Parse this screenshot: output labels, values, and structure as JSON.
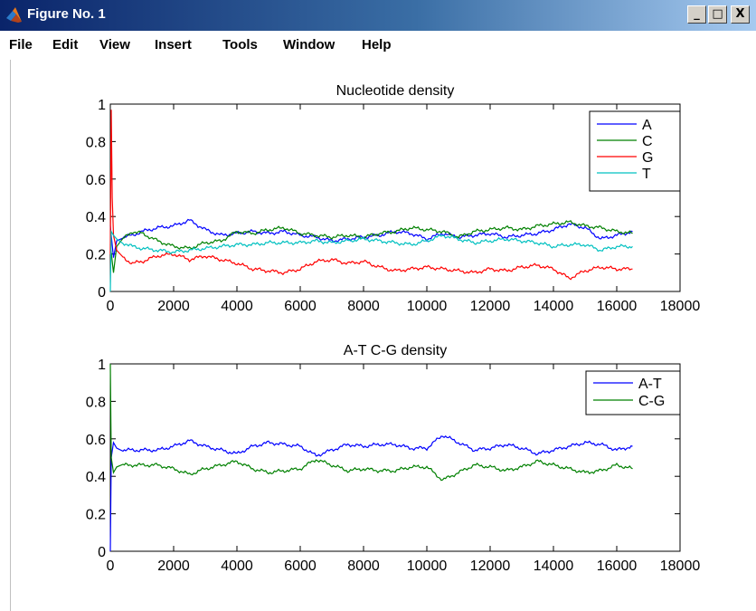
{
  "window": {
    "title": "Figure No. 1",
    "menu": [
      "File",
      "Edit",
      "View",
      "Insert",
      "Tools",
      "Window",
      "Help"
    ],
    "buttons": {
      "minimize": "_",
      "maximize": "□",
      "close": "X"
    }
  },
  "chart_data": [
    {
      "type": "line",
      "title": "Nucleotide density",
      "xlim": [
        0,
        18000
      ],
      "ylim": [
        0,
        1
      ],
      "xticks": [
        0,
        2000,
        4000,
        6000,
        8000,
        10000,
        12000,
        14000,
        16000,
        18000
      ],
      "yticks": [
        0,
        0.2,
        0.4,
        0.6,
        0.8,
        1
      ],
      "legend_position": "top-right",
      "series": [
        {
          "name": "A",
          "color": "#0000ff",
          "x": [
            0,
            100,
            200,
            400,
            700,
            1000,
            1500,
            2000,
            2500,
            3000,
            3500,
            4000,
            4500,
            5000,
            5500,
            6000,
            6500,
            7000,
            7500,
            8000,
            8500,
            9000,
            9500,
            10000,
            10500,
            11000,
            11500,
            12000,
            12500,
            13000,
            13500,
            14000,
            14500,
            15000,
            15500,
            16000,
            16500
          ],
          "values": [
            0.35,
            0.18,
            0.27,
            0.29,
            0.3,
            0.32,
            0.34,
            0.35,
            0.38,
            0.33,
            0.3,
            0.31,
            0.32,
            0.31,
            0.32,
            0.3,
            0.29,
            0.27,
            0.28,
            0.29,
            0.3,
            0.32,
            0.31,
            0.28,
            0.31,
            0.29,
            0.3,
            0.31,
            0.29,
            0.3,
            0.31,
            0.33,
            0.36,
            0.34,
            0.28,
            0.3,
            0.32
          ]
        },
        {
          "name": "C",
          "color": "#008000",
          "x": [
            0,
            100,
            200,
            400,
            700,
            1000,
            1500,
            2000,
            2500,
            3000,
            3500,
            4000,
            4500,
            5000,
            5500,
            6000,
            6500,
            7000,
            7500,
            8000,
            8500,
            9000,
            9500,
            10000,
            10500,
            11000,
            11500,
            12000,
            12500,
            13000,
            13500,
            14000,
            14500,
            15000,
            15500,
            16000,
            16500
          ],
          "values": [
            0.25,
            0.1,
            0.24,
            0.28,
            0.32,
            0.31,
            0.27,
            0.24,
            0.23,
            0.26,
            0.27,
            0.32,
            0.31,
            0.33,
            0.34,
            0.31,
            0.3,
            0.29,
            0.3,
            0.29,
            0.31,
            0.32,
            0.34,
            0.33,
            0.32,
            0.29,
            0.32,
            0.33,
            0.34,
            0.33,
            0.35,
            0.36,
            0.37,
            0.35,
            0.34,
            0.32,
            0.31
          ]
        },
        {
          "name": "G",
          "color": "#ff0000",
          "x": [
            0,
            30,
            60,
            100,
            200,
            400,
            700,
            1000,
            1500,
            2000,
            2500,
            3000,
            3500,
            4000,
            4500,
            5000,
            5500,
            6000,
            6500,
            7000,
            7500,
            8000,
            8500,
            9000,
            9500,
            10000,
            10500,
            11000,
            11500,
            12000,
            12500,
            13000,
            13500,
            14000,
            14500,
            15000,
            15500,
            16000,
            16500
          ],
          "values": [
            0.2,
            0.97,
            0.5,
            0.3,
            0.22,
            0.18,
            0.15,
            0.16,
            0.19,
            0.2,
            0.17,
            0.19,
            0.17,
            0.15,
            0.12,
            0.11,
            0.1,
            0.12,
            0.16,
            0.17,
            0.15,
            0.16,
            0.13,
            0.11,
            0.12,
            0.13,
            0.12,
            0.11,
            0.1,
            0.12,
            0.11,
            0.13,
            0.14,
            0.12,
            0.07,
            0.11,
            0.13,
            0.12,
            0.12
          ]
        },
        {
          "name": "T",
          "color": "#00c0c0",
          "x": [
            0,
            30,
            100,
            200,
            400,
            700,
            1000,
            1500,
            2000,
            2500,
            3000,
            3500,
            4000,
            4500,
            5000,
            5500,
            6000,
            6500,
            7000,
            7500,
            8000,
            8500,
            9000,
            9500,
            10000,
            10500,
            11000,
            11500,
            12000,
            12500,
            13000,
            13500,
            14000,
            14500,
            15000,
            15500,
            16000,
            16500
          ],
          "values": [
            0.0,
            0.32,
            0.3,
            0.28,
            0.26,
            0.24,
            0.23,
            0.22,
            0.21,
            0.22,
            0.23,
            0.24,
            0.25,
            0.25,
            0.26,
            0.26,
            0.26,
            0.27,
            0.26,
            0.27,
            0.28,
            0.27,
            0.26,
            0.25,
            0.27,
            0.3,
            0.28,
            0.26,
            0.27,
            0.28,
            0.27,
            0.26,
            0.24,
            0.25,
            0.25,
            0.22,
            0.24,
            0.24
          ]
        }
      ]
    },
    {
      "type": "line",
      "title": "A-T C-G density",
      "xlim": [
        0,
        18000
      ],
      "ylim": [
        0,
        1
      ],
      "xticks": [
        0,
        2000,
        4000,
        6000,
        8000,
        10000,
        12000,
        14000,
        16000,
        18000
      ],
      "yticks": [
        0,
        0.2,
        0.4,
        0.6,
        0.8,
        1
      ],
      "legend_position": "top-right",
      "series": [
        {
          "name": "A-T",
          "color": "#0000ff",
          "x": [
            0,
            30,
            100,
            200,
            400,
            700,
            1000,
            1500,
            2000,
            2500,
            3000,
            3500,
            4000,
            4500,
            5000,
            5500,
            6000,
            6500,
            7000,
            7500,
            8000,
            8500,
            9000,
            9500,
            10000,
            10500,
            11000,
            11500,
            12000,
            12500,
            13000,
            13500,
            14000,
            14500,
            15000,
            15500,
            16000,
            16500
          ],
          "values": [
            0.0,
            0.5,
            0.58,
            0.55,
            0.54,
            0.54,
            0.54,
            0.54,
            0.56,
            0.59,
            0.56,
            0.54,
            0.52,
            0.56,
            0.58,
            0.57,
            0.56,
            0.51,
            0.54,
            0.57,
            0.56,
            0.57,
            0.57,
            0.55,
            0.55,
            0.62,
            0.58,
            0.54,
            0.55,
            0.57,
            0.55,
            0.52,
            0.54,
            0.56,
            0.58,
            0.57,
            0.54,
            0.56
          ]
        },
        {
          "name": "C-G",
          "color": "#008000",
          "x": [
            0,
            30,
            100,
            200,
            400,
            700,
            1000,
            1500,
            2000,
            2500,
            3000,
            3500,
            4000,
            4500,
            5000,
            5500,
            6000,
            6500,
            7000,
            7500,
            8000,
            8500,
            9000,
            9500,
            10000,
            10500,
            11000,
            11500,
            12000,
            12500,
            13000,
            13500,
            14000,
            14500,
            15000,
            15500,
            16000,
            16500
          ],
          "values": [
            1.0,
            0.5,
            0.42,
            0.45,
            0.46,
            0.46,
            0.46,
            0.46,
            0.44,
            0.41,
            0.44,
            0.46,
            0.48,
            0.44,
            0.42,
            0.43,
            0.44,
            0.49,
            0.46,
            0.43,
            0.44,
            0.43,
            0.43,
            0.45,
            0.45,
            0.38,
            0.42,
            0.46,
            0.45,
            0.43,
            0.45,
            0.48,
            0.46,
            0.44,
            0.42,
            0.43,
            0.46,
            0.44
          ]
        }
      ]
    }
  ]
}
